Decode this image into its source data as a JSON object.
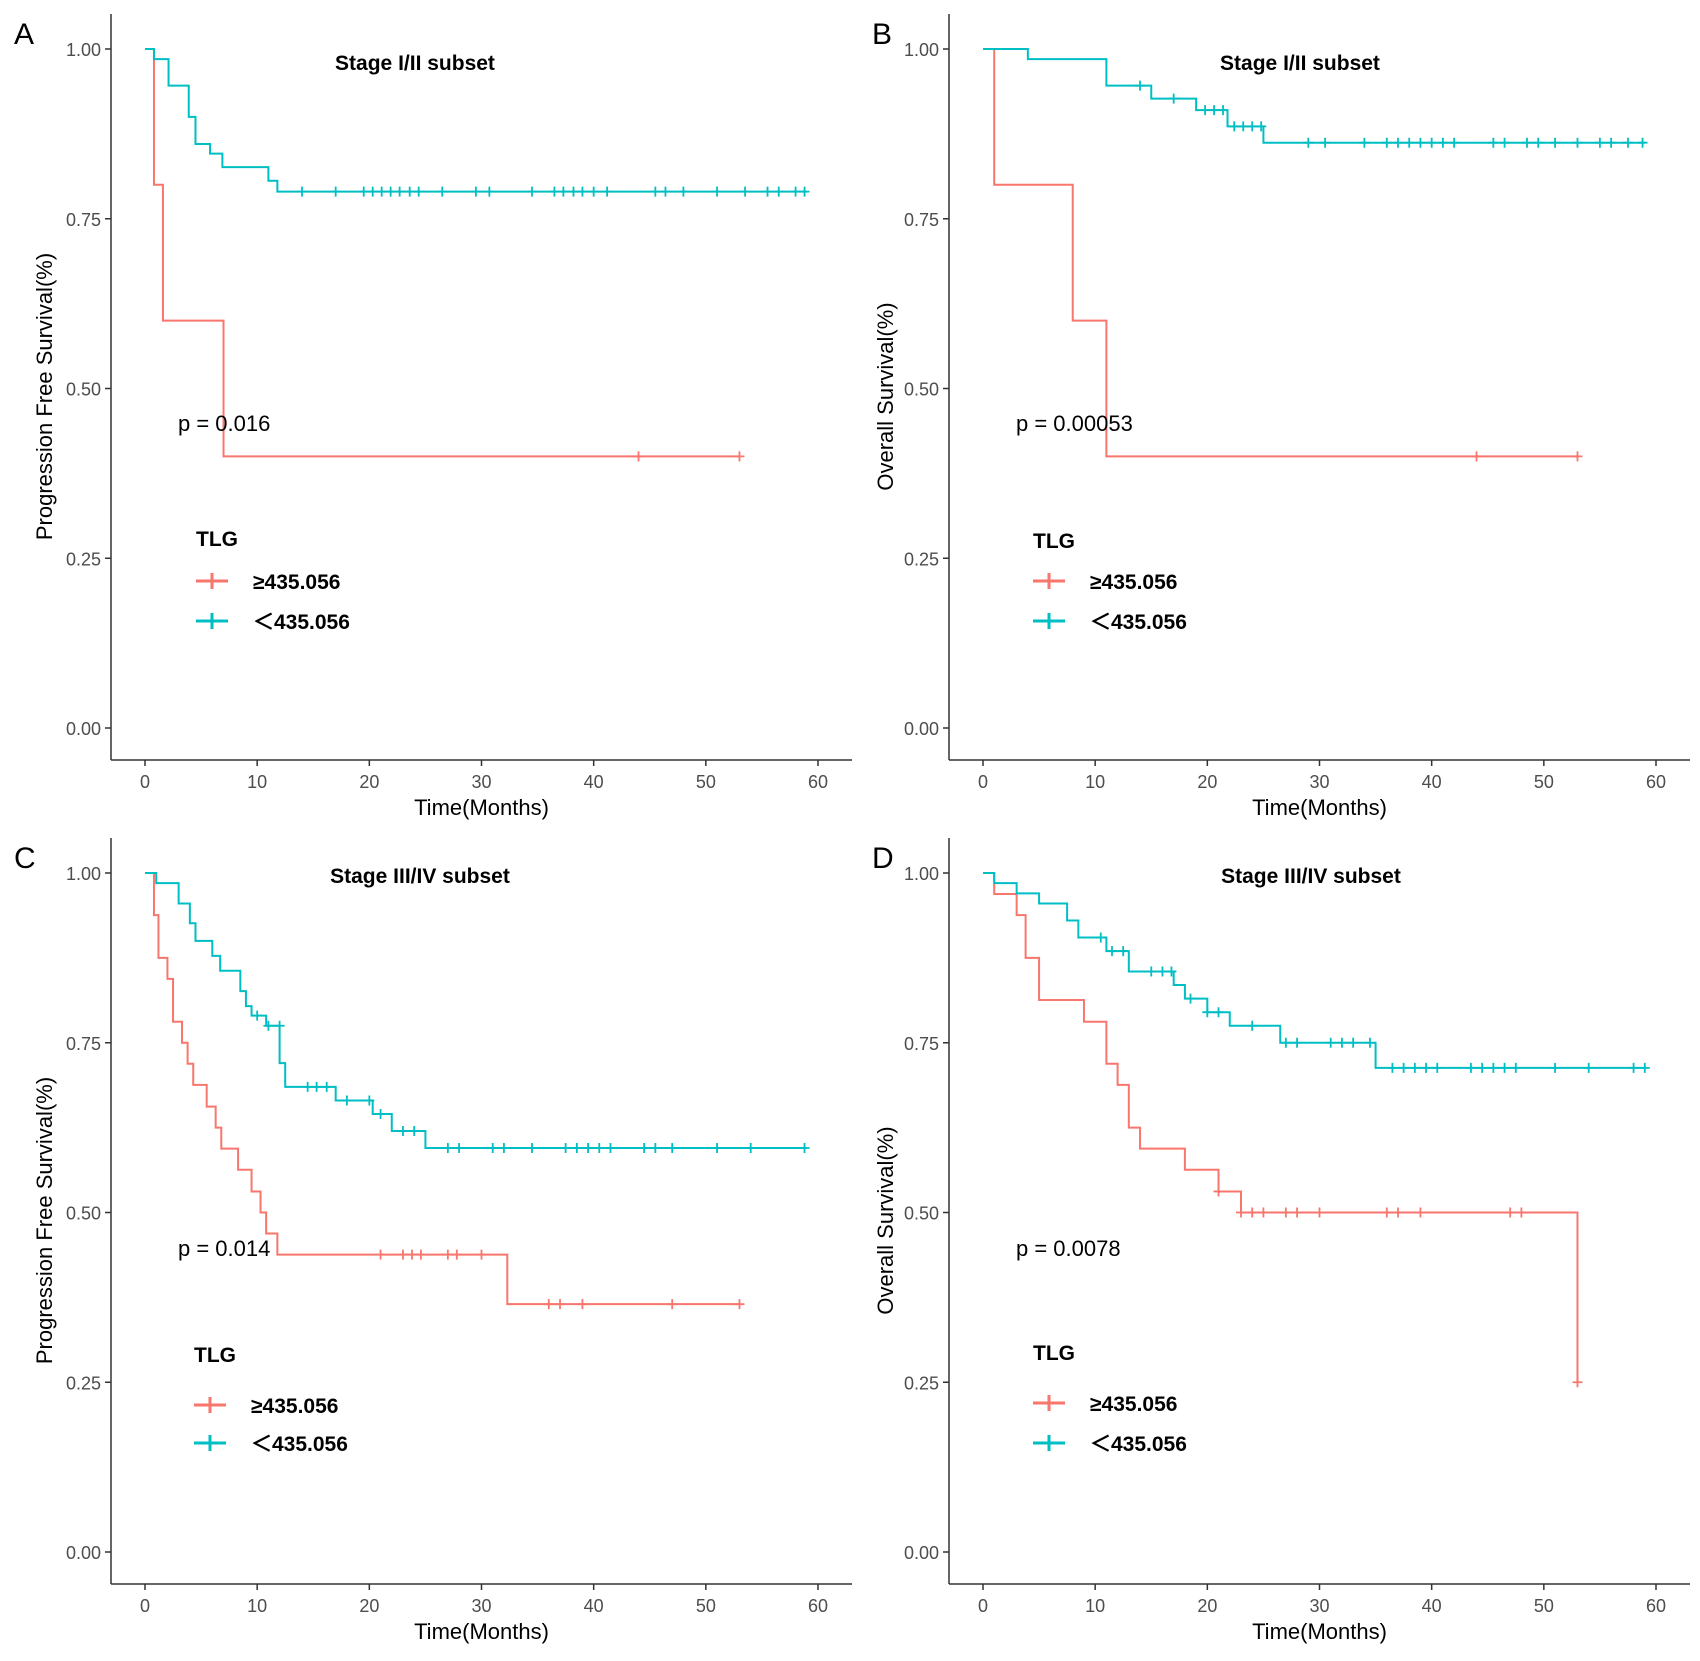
{
  "colors": {
    "high": "#f8766d",
    "low": "#00bfc4",
    "axis": "#333333",
    "text": "#000000"
  },
  "chart_data": [
    {
      "panel": "A",
      "type": "line",
      "subtype": "kaplan-meier",
      "title": "Stage I/II subset",
      "xlabel": "Time(Months)",
      "ylabel": "Progression Free Survival(%)",
      "xlim": [
        0,
        60
      ],
      "ylim": [
        0,
        1
      ],
      "x_ticks": [
        "0",
        "10",
        "20",
        "30",
        "40",
        "50",
        "60"
      ],
      "y_ticks": [
        "0.00",
        "0.25",
        "0.50",
        "0.75",
        "1.00"
      ],
      "p_value": "p = 0.016",
      "legend_title": "TLG",
      "legend_position": "middle-left",
      "series": [
        {
          "name": "≥435.056",
          "color_key": "high",
          "steps": [
            [
              0,
              1.0
            ],
            [
              0.8,
              0.8
            ],
            [
              1.6,
              0.6
            ],
            [
              7,
              0.4
            ]
          ],
          "end_x": 53,
          "censors": [
            [
              44,
              0.4
            ],
            [
              53,
              0.4
            ]
          ]
        },
        {
          "name": "＜435.056",
          "color_key": "low",
          "steps": [
            [
              0,
              1.0
            ],
            [
              0.8,
              0.985
            ],
            [
              2.1,
              0.946
            ],
            [
              3.9,
              0.9
            ],
            [
              4.5,
              0.86
            ],
            [
              5.8,
              0.846
            ],
            [
              6.9,
              0.826
            ],
            [
              11,
              0.806
            ],
            [
              11.8,
              0.79
            ]
          ],
          "end_x": 59,
          "censors": [
            [
              14,
              0.79
            ],
            [
              17,
              0.79
            ],
            [
              19.5,
              0.79
            ],
            [
              20.3,
              0.79
            ],
            [
              21.1,
              0.79
            ],
            [
              21.9,
              0.79
            ],
            [
              22.7,
              0.79
            ],
            [
              23.6,
              0.79
            ],
            [
              24.4,
              0.79
            ],
            [
              26.5,
              0.79
            ],
            [
              29.5,
              0.79
            ],
            [
              30.7,
              0.79
            ],
            [
              34.5,
              0.79
            ],
            [
              36.5,
              0.79
            ],
            [
              37.3,
              0.79
            ],
            [
              38.2,
              0.79
            ],
            [
              39,
              0.79
            ],
            [
              40,
              0.79
            ],
            [
              41.2,
              0.79
            ],
            [
              45.5,
              0.79
            ],
            [
              46.4,
              0.79
            ],
            [
              48,
              0.79
            ],
            [
              51,
              0.79
            ],
            [
              53.5,
              0.79
            ],
            [
              55.5,
              0.79
            ],
            [
              56.5,
              0.79
            ],
            [
              58,
              0.79
            ],
            [
              58.8,
              0.79
            ]
          ]
        }
      ]
    },
    {
      "panel": "B",
      "type": "line",
      "subtype": "kaplan-meier",
      "title": "Stage I/II subset",
      "xlabel": "Time(Months)",
      "ylabel": "Overall Survival(%)",
      "xlim": [
        0,
        60
      ],
      "ylim": [
        0,
        1
      ],
      "x_ticks": [
        "0",
        "10",
        "20",
        "30",
        "40",
        "50",
        "60"
      ],
      "y_ticks": [
        "0.00",
        "0.25",
        "0.50",
        "0.75",
        "1.00"
      ],
      "p_value": "p = 0.00053",
      "legend_title": "TLG",
      "legend_position": "middle-left",
      "series": [
        {
          "name": "≥435.056",
          "color_key": "high",
          "steps": [
            [
              0,
              1.0
            ],
            [
              1,
              0.8
            ],
            [
              8,
              0.6
            ],
            [
              11,
              0.4
            ]
          ],
          "end_x": 53,
          "censors": [
            [
              44,
              0.4
            ],
            [
              53,
              0.4
            ]
          ]
        },
        {
          "name": "＜435.056",
          "color_key": "low",
          "steps": [
            [
              0,
              1.0
            ],
            [
              4,
              0.985
            ],
            [
              11,
              0.946
            ],
            [
              15,
              0.927
            ],
            [
              19,
              0.91
            ],
            [
              21.8,
              0.886
            ],
            [
              25,
              0.862
            ]
          ],
          "end_x": 59,
          "censors": [
            [
              14,
              0.946
            ],
            [
              17,
              0.927
            ],
            [
              19.8,
              0.91
            ],
            [
              20.6,
              0.91
            ],
            [
              21.4,
              0.91
            ],
            [
              22.4,
              0.886
            ],
            [
              23.2,
              0.886
            ],
            [
              24,
              0.886
            ],
            [
              24.8,
              0.886
            ],
            [
              29,
              0.862
            ],
            [
              30.5,
              0.862
            ],
            [
              34,
              0.862
            ],
            [
              36,
              0.862
            ],
            [
              37,
              0.862
            ],
            [
              38,
              0.862
            ],
            [
              39,
              0.862
            ],
            [
              40,
              0.862
            ],
            [
              41,
              0.862
            ],
            [
              42,
              0.862
            ],
            [
              45.5,
              0.862
            ],
            [
              46.5,
              0.862
            ],
            [
              48.5,
              0.862
            ],
            [
              49.5,
              0.862
            ],
            [
              51,
              0.862
            ],
            [
              53,
              0.862
            ],
            [
              55,
              0.862
            ],
            [
              56,
              0.862
            ],
            [
              57.5,
              0.862
            ],
            [
              58.8,
              0.862
            ]
          ]
        }
      ]
    },
    {
      "panel": "C",
      "type": "line",
      "subtype": "kaplan-meier",
      "title": "Stage III/IV subset",
      "xlabel": "Time(Months)",
      "ylabel": "Progression Free Survival(%)",
      "xlim": [
        0,
        60
      ],
      "ylim": [
        0,
        1
      ],
      "x_ticks": [
        "0",
        "10",
        "20",
        "30",
        "40",
        "50",
        "60"
      ],
      "y_ticks": [
        "0.00",
        "0.25",
        "0.50",
        "0.75",
        "1.00"
      ],
      "p_value": "p = 0.014",
      "legend_title": "TLG",
      "legend_position": "middle-left",
      "series": [
        {
          "name": "≥435.056",
          "color_key": "high",
          "steps": [
            [
              0,
              1.0
            ],
            [
              0.8,
              0.938
            ],
            [
              1.2,
              0.875
            ],
            [
              2,
              0.844
            ],
            [
              2.5,
              0.781
            ],
            [
              3.3,
              0.75
            ],
            [
              3.8,
              0.719
            ],
            [
              4.3,
              0.688
            ],
            [
              5.5,
              0.656
            ],
            [
              6.3,
              0.625
            ],
            [
              6.8,
              0.594
            ],
            [
              8.3,
              0.563
            ],
            [
              9.5,
              0.531
            ],
            [
              10.3,
              0.5
            ],
            [
              10.8,
              0.469
            ],
            [
              11.8,
              0.438
            ],
            [
              32.3,
              0.365
            ]
          ],
          "end_x": 53,
          "censors": [
            [
              21,
              0.438
            ],
            [
              23,
              0.438
            ],
            [
              23.8,
              0.438
            ],
            [
              24.6,
              0.438
            ],
            [
              27,
              0.438
            ],
            [
              27.8,
              0.438
            ],
            [
              30,
              0.438
            ],
            [
              36,
              0.365
            ],
            [
              37,
              0.365
            ],
            [
              39,
              0.365
            ],
            [
              47,
              0.365
            ],
            [
              53,
              0.365
            ]
          ]
        },
        {
          "name": "＜435.056",
          "color_key": "low",
          "steps": [
            [
              0,
              1.0
            ],
            [
              1,
              0.985
            ],
            [
              3,
              0.955
            ],
            [
              4,
              0.926
            ],
            [
              4.5,
              0.9
            ],
            [
              6,
              0.878
            ],
            [
              6.7,
              0.856
            ],
            [
              8.5,
              0.826
            ],
            [
              9,
              0.804
            ],
            [
              9.5,
              0.79
            ],
            [
              10.8,
              0.775
            ],
            [
              12,
              0.72
            ],
            [
              12.5,
              0.685
            ],
            [
              17,
              0.665
            ],
            [
              20.3,
              0.645
            ],
            [
              22,
              0.62
            ],
            [
              25,
              0.595
            ]
          ],
          "end_x": 59,
          "censors": [
            [
              10,
              0.79
            ],
            [
              11,
              0.775
            ],
            [
              12,
              0.775
            ],
            [
              14.5,
              0.685
            ],
            [
              15.3,
              0.685
            ],
            [
              16.2,
              0.685
            ],
            [
              18,
              0.665
            ],
            [
              20,
              0.665
            ],
            [
              21,
              0.645
            ],
            [
              23,
              0.62
            ],
            [
              24,
              0.62
            ],
            [
              27,
              0.595
            ],
            [
              28,
              0.595
            ],
            [
              31,
              0.595
            ],
            [
              32,
              0.595
            ],
            [
              34.5,
              0.595
            ],
            [
              37.5,
              0.595
            ],
            [
              38.5,
              0.595
            ],
            [
              39.5,
              0.595
            ],
            [
              40.5,
              0.595
            ],
            [
              41.5,
              0.595
            ],
            [
              44.5,
              0.595
            ],
            [
              45.5,
              0.595
            ],
            [
              47,
              0.595
            ],
            [
              51,
              0.595
            ],
            [
              54,
              0.595
            ],
            [
              58.8,
              0.595
            ]
          ]
        }
      ]
    },
    {
      "panel": "D",
      "type": "line",
      "subtype": "kaplan-meier",
      "title": "Stage III/IV subset",
      "xlabel": "Time(Months)",
      "ylabel": "Overall Survival(%)",
      "xlim": [
        0,
        60
      ],
      "ylim": [
        0,
        1
      ],
      "x_ticks": [
        "0",
        "10",
        "20",
        "30",
        "40",
        "50",
        "60"
      ],
      "y_ticks": [
        "0.00",
        "0.25",
        "0.50",
        "0.75",
        "1.00"
      ],
      "p_value": "p = 0.0078",
      "legend_title": "TLG",
      "legend_position": "middle-left",
      "series": [
        {
          "name": "≥435.056",
          "color_key": "high",
          "steps": [
            [
              0,
              1.0
            ],
            [
              1,
              0.969
            ],
            [
              3,
              0.938
            ],
            [
              3.8,
              0.875
            ],
            [
              5,
              0.813
            ],
            [
              9,
              0.781
            ],
            [
              11,
              0.719
            ],
            [
              12,
              0.688
            ],
            [
              13,
              0.625
            ],
            [
              14,
              0.594
            ],
            [
              18,
              0.563
            ],
            [
              21,
              0.531
            ],
            [
              23,
              0.5
            ],
            [
              53,
              0.25
            ]
          ],
          "end_x": 53,
          "censors": [
            [
              21,
              0.531
            ],
            [
              23,
              0.5
            ],
            [
              24,
              0.5
            ],
            [
              25,
              0.5
            ],
            [
              27,
              0.5
            ],
            [
              28,
              0.5
            ],
            [
              30,
              0.5
            ],
            [
              36,
              0.5
            ],
            [
              37,
              0.5
            ],
            [
              39,
              0.5
            ],
            [
              47,
              0.5
            ],
            [
              48,
              0.5
            ],
            [
              53,
              0.25
            ]
          ]
        },
        {
          "name": "＜435.056",
          "color_key": "low",
          "steps": [
            [
              0,
              1.0
            ],
            [
              1,
              0.985
            ],
            [
              3,
              0.97
            ],
            [
              5,
              0.955
            ],
            [
              7.5,
              0.93
            ],
            [
              8.5,
              0.905
            ],
            [
              11,
              0.885
            ],
            [
              13,
              0.855
            ],
            [
              17,
              0.835
            ],
            [
              18,
              0.815
            ],
            [
              20,
              0.795
            ],
            [
              22,
              0.775
            ],
            [
              26.5,
              0.75
            ],
            [
              35,
              0.713
            ]
          ],
          "end_x": 59,
          "censors": [
            [
              10.5,
              0.905
            ],
            [
              11.5,
              0.885
            ],
            [
              12.5,
              0.885
            ],
            [
              15,
              0.855
            ],
            [
              16,
              0.855
            ],
            [
              16.8,
              0.855
            ],
            [
              18.5,
              0.815
            ],
            [
              20,
              0.795
            ],
            [
              21,
              0.795
            ],
            [
              24,
              0.775
            ],
            [
              27,
              0.75
            ],
            [
              28,
              0.75
            ],
            [
              31,
              0.75
            ],
            [
              32,
              0.75
            ],
            [
              33,
              0.75
            ],
            [
              34.5,
              0.75
            ],
            [
              36.5,
              0.713
            ],
            [
              37.5,
              0.713
            ],
            [
              38.5,
              0.713
            ],
            [
              39.5,
              0.713
            ],
            [
              40.5,
              0.713
            ],
            [
              43.5,
              0.713
            ],
            [
              44.5,
              0.713
            ],
            [
              45.5,
              0.713
            ],
            [
              46.5,
              0.713
            ],
            [
              47.5,
              0.713
            ],
            [
              51,
              0.713
            ],
            [
              54,
              0.713
            ],
            [
              58,
              0.713
            ],
            [
              59,
              0.713
            ]
          ]
        }
      ]
    }
  ]
}
